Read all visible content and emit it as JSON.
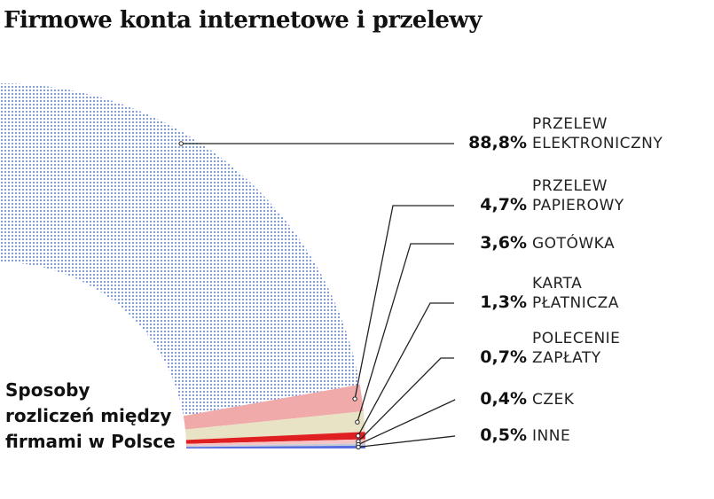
{
  "title": "Firmowe konta internetowe i przelewy",
  "subtitle": "Sposoby\nrozliczeń między\nfirmami w Polsce",
  "colors": {
    "series_1": "#5b7fe0",
    "series_2": "#f0aaaa",
    "series_3": "#e9e3c6",
    "series_4": "#e02020",
    "series_5": "#f5c4c4",
    "series_6": "#c8ccd8",
    "series_7": "#5a6fe0",
    "leader_line": "#222222"
  },
  "chart_data": {
    "type": "pie",
    "title": "Firmowe konta internetowe i przelewy",
    "subtitle": "Sposoby rozliczeń między firmami w Polsce",
    "style": "quarter donut",
    "unit": "%",
    "categories": [
      "PRZELEW ELEKTRONICZNY",
      "PRZELEW PAPIEROWY",
      "GOTÓWKA",
      "KARTA PŁATNICZA",
      "POLECENIE ZAPŁATY",
      "CZEK",
      "INNE"
    ],
    "values": [
      88.8,
      4.7,
      3.6,
      1.3,
      0.7,
      0.4,
      0.5
    ],
    "value_labels": [
      "88,8%",
      "4,7%",
      "3,6%",
      "1,3%",
      "0,7%",
      "0,4%",
      "0,5%"
    ],
    "category_labels": [
      "PRZELEW\nELEKTRONICZNY",
      "PRZELEW\nPAPIEROWY",
      "GOTÓWKA",
      "KARTA\nPŁATNICZA",
      "POLECENIE\nZAPŁATY",
      "CZEK",
      "INNE"
    ]
  }
}
